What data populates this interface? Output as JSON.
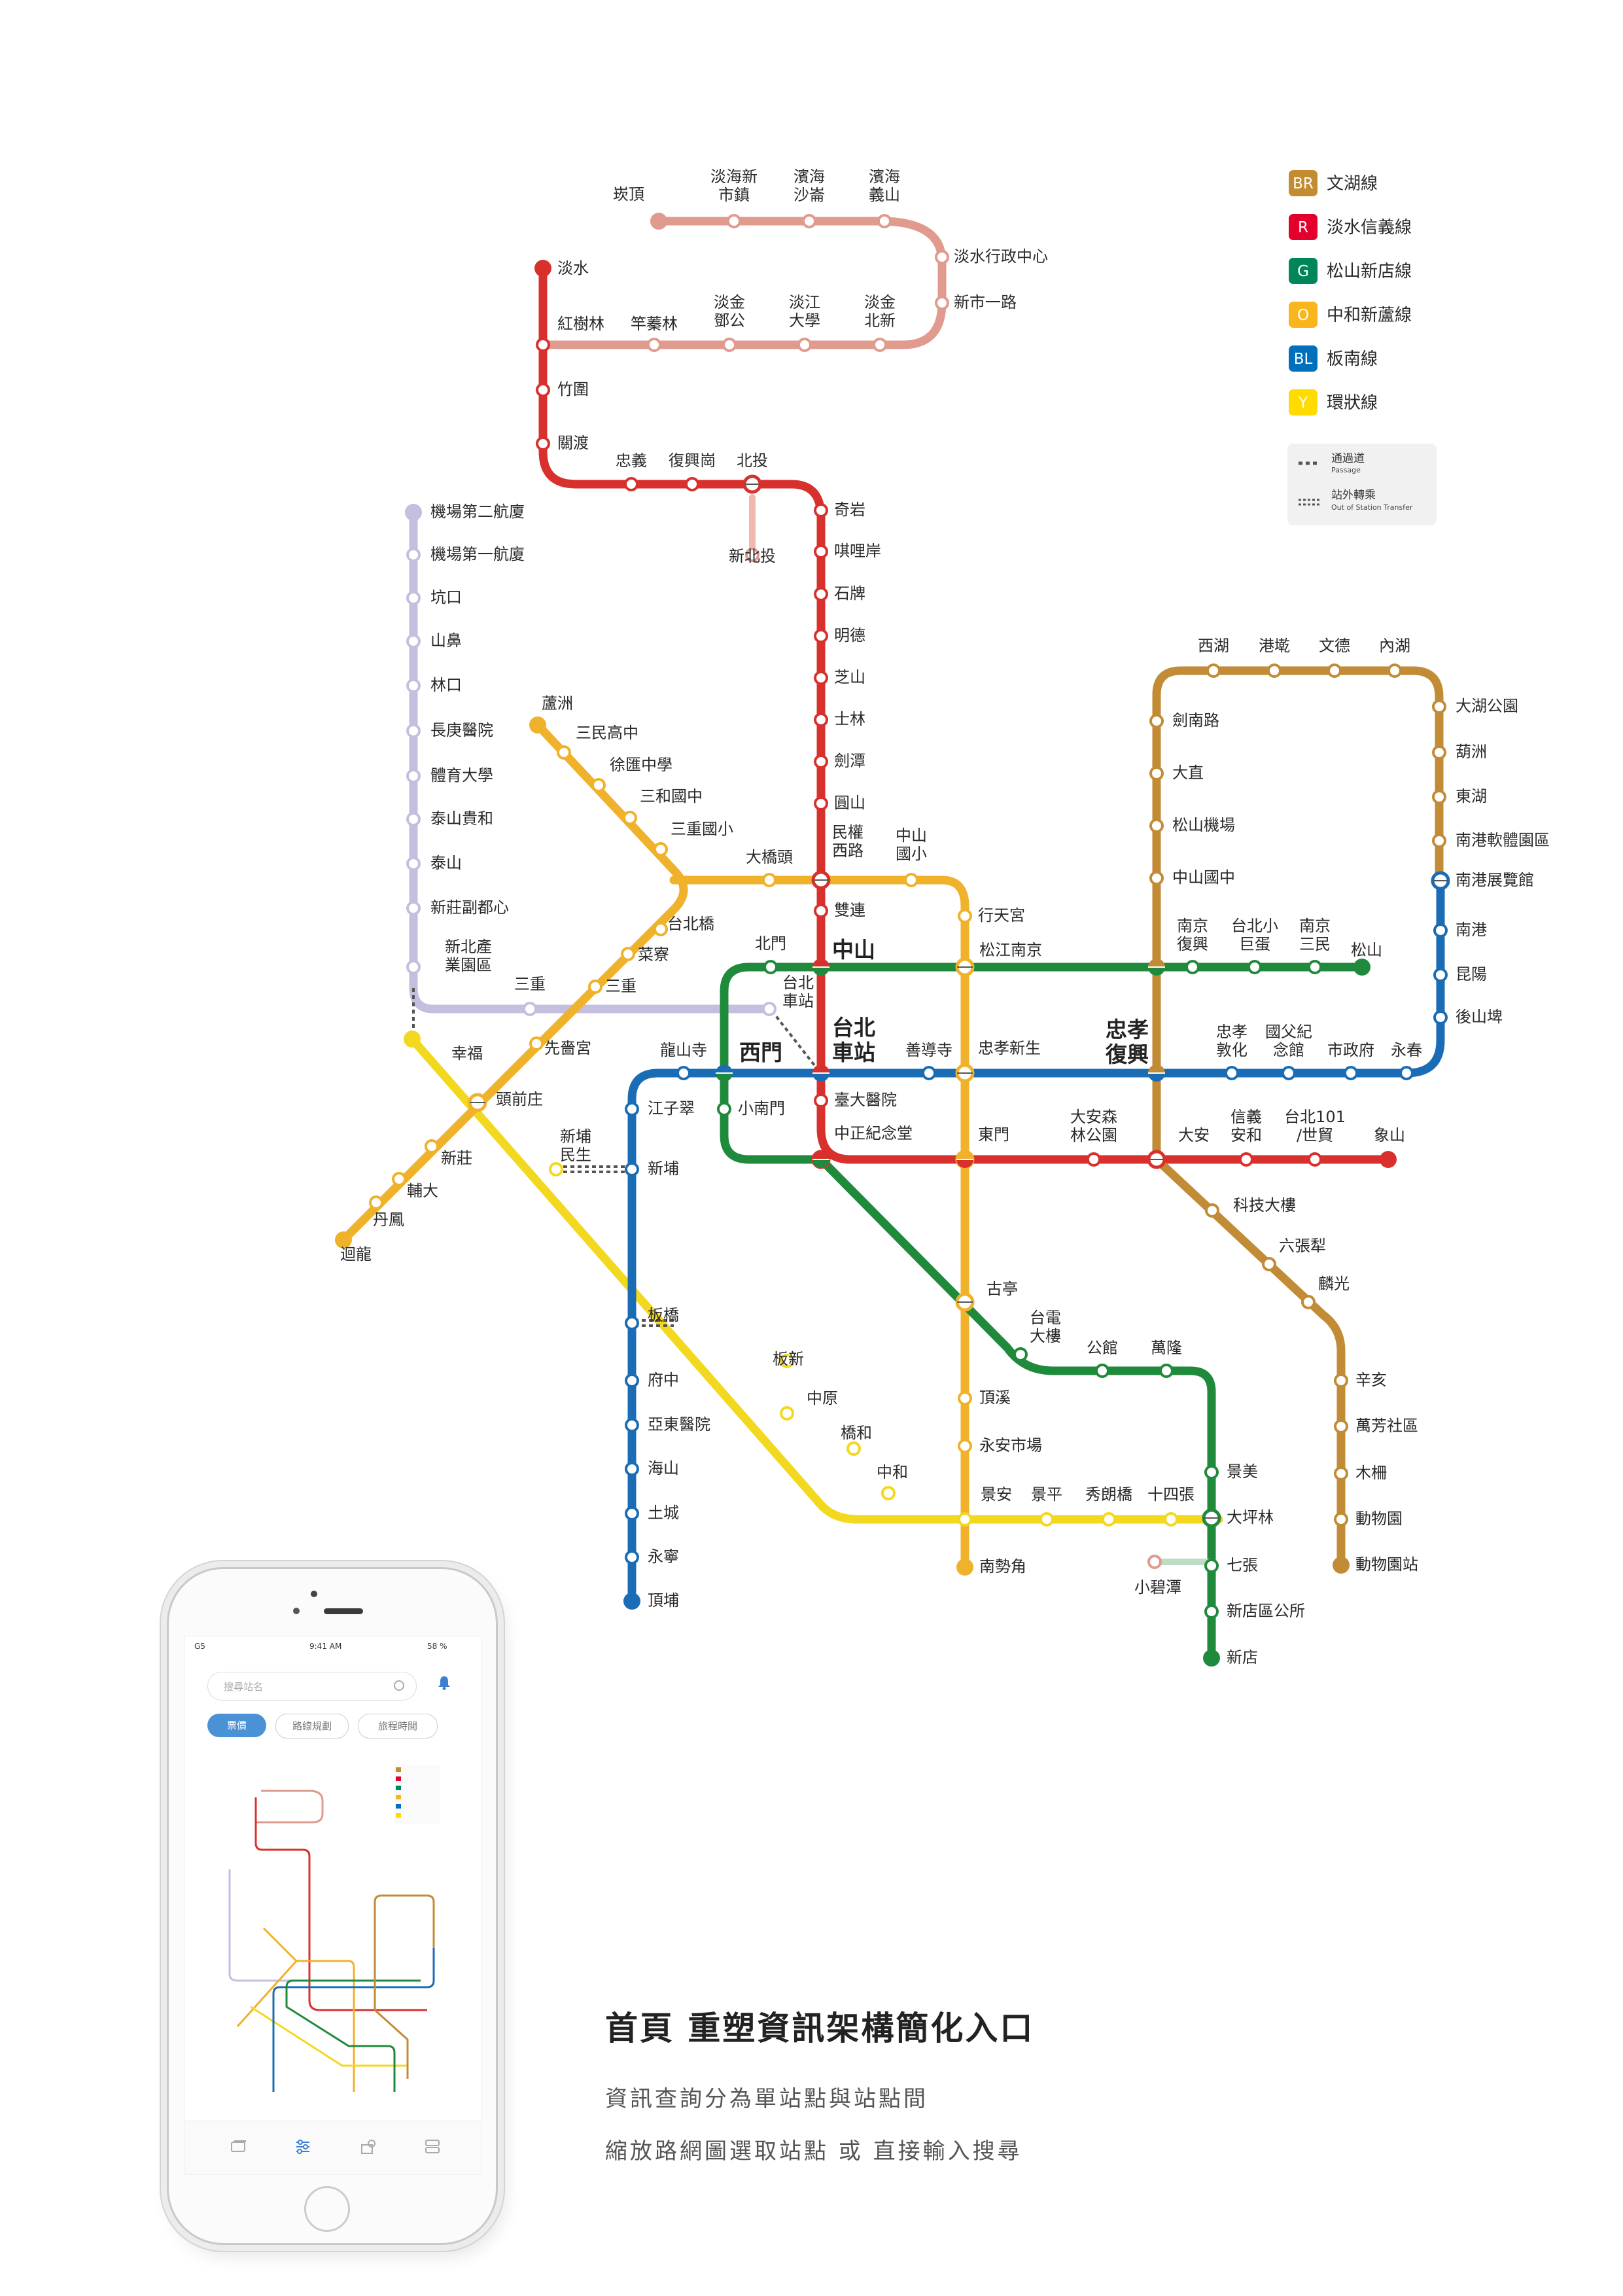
{
  "legend": [
    {
      "code": "BR",
      "name": "文湖線",
      "color": "#C48C31"
    },
    {
      "code": "R",
      "name": "淡水信義線",
      "color": "#E3002C"
    },
    {
      "code": "G",
      "name": "松山新店線",
      "color": "#008659"
    },
    {
      "code": "O",
      "name": "中和新蘆線",
      "color": "#F8B61C"
    },
    {
      "code": "BL",
      "name": "板南線",
      "color": "#0070BD"
    },
    {
      "code": "Y",
      "name": "環狀線",
      "color": "#FFDB00"
    }
  ],
  "legend_passage": {
    "title": "通過道",
    "subtitle": "Passage"
  },
  "legend_transfer": {
    "title": "站外轉乘",
    "subtitle": "Out of Station Transfer"
  },
  "stations": {
    "kanding": "崁頂",
    "tamsui_new_town": "淡海新市鎮",
    "binhai_shalun": "濱海沙崙",
    "binhai_yishan": "濱海義山",
    "tamsui_district_office": "淡水行政中心",
    "xinshi_1st_rd": "新市一路",
    "tamsui": "淡水",
    "hongshulin": "紅樹林",
    "ganzhenlin": "竿蓁林",
    "tamkang_dengong": "淡金鄧公",
    "tamkang_university": "淡江大學",
    "tamkang_beixin": "淡金北新",
    "zhuwei": "竹圍",
    "guandu": "關渡",
    "zhongyi": "忠義",
    "fuxinggang": "復興崗",
    "beitou": "北投",
    "xinbeitou": "新北投",
    "qiyan": "奇岩",
    "qilian": "唭哩岸",
    "shipai": "石牌",
    "mingde": "明德",
    "zhishan": "芝山",
    "shilin": "士林",
    "jiantan": "劍潭",
    "yuanshan": "圓山",
    "minquan_w": "民權西路",
    "shuanglian": "雙連",
    "zhongshan": "中山",
    "taipei_main": "台北車站",
    "ntu_hospital": "臺大醫院",
    "ckt_memorial": "中正紀念堂",
    "airport_t2": "機場第二航廈",
    "airport_t1": "機場第一航廈",
    "kengkou": "坑口",
    "shanbi": "山鼻",
    "linkou": "林口",
    "changgung": "長庚醫院",
    "ntsu": "體育大學",
    "taishan_guihe": "泰山貴和",
    "taishan": "泰山",
    "xinzhuang_fudu": "新莊副都心",
    "new_taipei_park": "新北產業園區",
    "luzhou": "蘆洲",
    "sanmin_hs": "三民高中",
    "xuhui_hs": "徐匯中學",
    "sanhe_jhs": "三和國中",
    "sanchong_es": "三重國小",
    "daqiaotou": "大橋頭",
    "zhongshan_es": "中山國小",
    "xingtian": "行天宮",
    "taipei_bridge": "台北橋",
    "cailiao": "菜寮",
    "sanchong": "三重",
    "sanchong_2": "三重",
    "xianse": "先嗇宮",
    "toucianzhuang": "頭前庄",
    "xinzhuang": "新莊",
    "fu_jen": "輔大",
    "danfeng": "丹鳳",
    "huilong": "迴龍",
    "xingfu": "幸福",
    "songjiang_nanjing": "松江南京",
    "zhongxiao_xinsheng": "忠孝新生",
    "dongmen": "東門",
    "guting": "古亭",
    "dingxi": "頂溪",
    "yongan_market": "永安市場",
    "jingan": "景安",
    "nanshijiao": "南勢角",
    "beimen": "北門",
    "ximen": "西門",
    "xiaonanmen": "小南門",
    "shandao": "善導寺",
    "longshan": "龍山寺",
    "jiangzicui": "江子翠",
    "xinpu": "新埔",
    "banqiao": "板橋",
    "fuzhong": "府中",
    "far_eastern": "亞東醫院",
    "haishan": "海山",
    "tucheng": "土城",
    "yongning": "永寧",
    "dingpu": "頂埔",
    "nanjing_fuxing": "南京復興",
    "taipei_arena": "台北小巨蛋",
    "nanjing_sanmin": "南京三民",
    "songshan": "松山",
    "zhongxiao_fuxing": "忠孝復興",
    "zhongxiao_dunhua": "忠孝敦化",
    "sun_yatsen": "國父紀念館",
    "city_hall": "市政府",
    "yongchun": "永春",
    "houshanpi": "後山埤",
    "kunyang": "昆陽",
    "nangang": "南港",
    "nangang_exhibition": "南港展覽館",
    "daan": "大安",
    "daan_park": "大安森林公園",
    "xinyi_anhe": "信義安和",
    "taipei_101": "台北101/世貿",
    "xiangshan": "象山",
    "xihu": "西湖",
    "gangqian": "港墘",
    "wende": "文德",
    "neihu": "內湖",
    "dahu_park": "大湖公園",
    "huzhou": "葫洲",
    "donghu": "東湖",
    "nangang_software": "南港軟體園區",
    "jiannan": "劍南路",
    "dazhi": "大直",
    "songshan_airport": "松山機場",
    "zhongshan_jhs": "中山國中",
    "technology_bldg": "科技大樓",
    "liuzhangli": "六張犁",
    "linguang": "麟光",
    "xinhai": "辛亥",
    "wanfang_community": "萬芳社區",
    "muzha": "木柵",
    "taipei_zoo_stop": "動物園",
    "taipei_zoo": "動物園站",
    "taipower": "台電大樓",
    "gongguan": "公館",
    "wanlong": "萬隆",
    "jingmei": "景美",
    "dapinglin": "大坪林",
    "qizhang": "七張",
    "xiaobitan": "小碧潭",
    "xindian_office": "新店區公所",
    "xindian": "新店",
    "xinpu_minsheng": "新埔民生",
    "banxin": "板新",
    "zhongyuan": "中原",
    "qiaohe": "橋和",
    "zhonghe": "中和",
    "jingping": "景平",
    "xiulang": "秀朗橋",
    "shisizhang": "十四張"
  },
  "big_labels": {
    "zhongshan": "中山",
    "taipei_main_1": "台北",
    "taipei_main_2": "車站",
    "ximen": "西門",
    "zhongxiao_fuxing_1": "忠孝",
    "zhongxiao_fuxing_2": "復興"
  },
  "phone": {
    "status_carrier": "G5",
    "status_time": "9:41 AM",
    "status_battery": "58 %",
    "search_placeholder": "搜尋站名",
    "tabs": [
      "票價",
      "路線規劃",
      "旅程時間"
    ]
  },
  "caption": {
    "title": "首頁  重塑資訊架構簡化入口",
    "line1": "資訊查詢分為單站點與站點間",
    "line2": "縮放路網圖選取站點 或 直接輸入搜尋"
  }
}
